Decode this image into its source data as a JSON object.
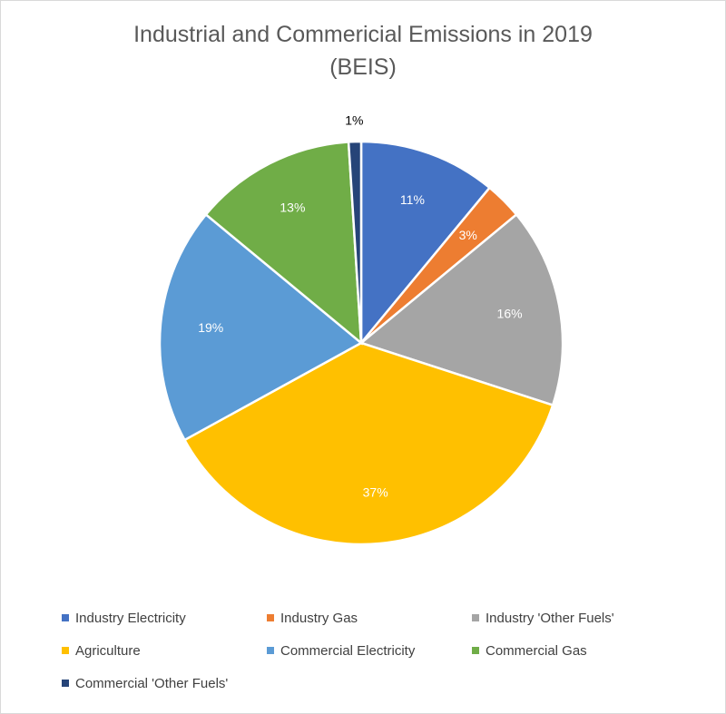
{
  "chart_data": {
    "type": "pie",
    "title": "Industrial and Commericial Emissions in 2019",
    "subtitle": "(BEIS)",
    "categories": [
      "Industry Electricity",
      "Industry Gas",
      "Industry 'Other Fuels'",
      "Agriculture",
      "Commercial Electricity",
      "Commercial Gas",
      "Commercial 'Other Fuels'"
    ],
    "values": [
      11,
      3,
      16,
      37,
      19,
      13,
      1
    ],
    "labels": [
      "11%",
      "3%",
      "16%",
      "37%",
      "19%",
      "13%",
      "1%"
    ],
    "colors": [
      "#4472c4",
      "#ed7d31",
      "#a5a5a5",
      "#ffc000",
      "#5b9bd5",
      "#70ad47",
      "#264478"
    ],
    "label_colors": [
      "#ffffff",
      "#ffffff",
      "#ffffff",
      "#ffffff",
      "#ffffff",
      "#ffffff",
      "#000000"
    ],
    "legend_position": "bottom",
    "start_angle": "top, clockwise"
  }
}
